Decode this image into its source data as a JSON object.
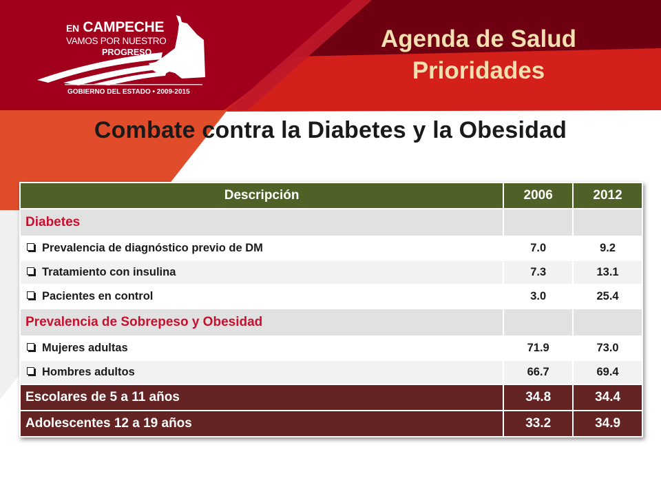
{
  "logo": {
    "line1_small": "EN",
    "line1_big": "CAMPECHE",
    "line2": "VAMOS POR NUESTRO",
    "line3": "PROGRESO",
    "footer": "GOBIERNO DEL ESTADO • 2009-2015"
  },
  "header": {
    "title_line1": "Agenda de Salud",
    "title_line2": "Prioridades"
  },
  "main": {
    "title": "Combate contra la Diabetes y la Obesidad"
  },
  "table": {
    "headers": [
      "Descripción",
      "2006",
      "2012"
    ],
    "sections": [
      {
        "label": "Diabetes",
        "items": [
          {
            "label": "Prevalencia de diagnóstico previo de DM",
            "v2006": "7.0",
            "v2012": "9.2"
          },
          {
            "label": "Tratamiento con insulina",
            "v2006": "7.3",
            "v2012": "13.1"
          },
          {
            "label": "Pacientes en control",
            "v2006": "3.0",
            "v2012": "25.4"
          }
        ]
      },
      {
        "label": "Prevalencia de Sobrepeso y Obesidad",
        "items": [
          {
            "label": "Mujeres adultas",
            "v2006": "71.9",
            "v2012": "73.0"
          },
          {
            "label": "Hombres adultos",
            "v2006": "66.7",
            "v2012": "69.4"
          }
        ]
      }
    ],
    "summary_rows": [
      {
        "label": "Escolares de 5 a 11 años",
        "v2006": "34.8",
        "v2012": "34.4"
      },
      {
        "label": "Adolescentes 12 a 19 años",
        "v2006": "33.2",
        "v2012": "34.9"
      }
    ]
  },
  "colors": {
    "header_dark_red": "#a1001d",
    "header_red": "#d3201a",
    "orange_accent": "#e14d2a",
    "title_gold": "#f3dfb0",
    "table_header_olive": "#4f6126",
    "section_label_red": "#c8102e",
    "summary_maroon": "#632423"
  },
  "icons": {
    "logo_shape": "campeche-state-silhouette-icon",
    "list_bullet": "checkbox-bullet-icon"
  }
}
